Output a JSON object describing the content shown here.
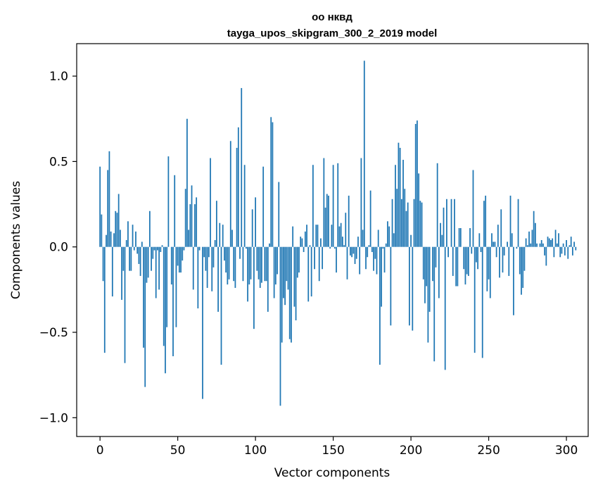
{
  "chart_data": {
    "type": "bar",
    "title_line1": "оо нквд",
    "title_line2": "tayga_upos_skipgram_300_2_2019 model",
    "xlabel": "Vector components",
    "ylabel": "Components values",
    "xlim": [
      -15,
      314
    ],
    "ylim": [
      -1.11,
      1.19
    ],
    "grid": false,
    "legend": "none",
    "bar_color": "#1f77b4",
    "x_ticks": [
      0,
      50,
      100,
      150,
      200,
      250,
      300
    ],
    "x_tick_labels": [
      "0",
      "50",
      "100",
      "150",
      "200",
      "250",
      "300"
    ],
    "y_ticks": [
      -1.0,
      -0.5,
      0.0,
      0.5,
      1.0
    ],
    "y_tick_labels": [
      "−1.0",
      "−0.5",
      "0.0",
      "0.5",
      "1.0"
    ],
    "values": [
      0.47,
      0.19,
      -0.2,
      -0.62,
      0.07,
      0.45,
      0.56,
      0.09,
      -0.29,
      0.08,
      0.21,
      0.2,
      0.31,
      0.1,
      -0.31,
      -0.14,
      -0.68,
      0.04,
      0.15,
      -0.14,
      -0.14,
      0.13,
      -0.02,
      0.09,
      -0.04,
      -0.1,
      -0.17,
      0.03,
      -0.59,
      -0.82,
      -0.21,
      -0.18,
      0.21,
      -0.14,
      -0.07,
      -0.02,
      -0.3,
      -0.02,
      -0.25,
      -0.03,
      0.01,
      -0.58,
      -0.74,
      -0.47,
      0.53,
      0.0,
      -0.22,
      -0.64,
      0.42,
      -0.47,
      -0.11,
      -0.15,
      -0.15,
      -0.08,
      -0.02,
      0.34,
      0.75,
      0.1,
      0.25,
      0.36,
      -0.25,
      0.25,
      0.29,
      -0.36,
      -0.02,
      0.0,
      -0.89,
      -0.06,
      -0.14,
      -0.24,
      -0.06,
      0.52,
      -0.26,
      -0.12,
      0.04,
      0.27,
      -0.38,
      0.14,
      -0.69,
      0.13,
      -0.08,
      -0.15,
      -0.22,
      -0.19,
      0.62,
      0.1,
      -0.2,
      -0.24,
      0.58,
      0.7,
      -0.07,
      0.93,
      -0.2,
      0.48,
      -0.01,
      -0.32,
      -0.22,
      -0.19,
      0.22,
      -0.48,
      0.29,
      -0.14,
      -0.19,
      -0.24,
      -0.21,
      0.47,
      -0.2,
      -0.2,
      -0.38,
      0.02,
      0.76,
      0.73,
      -0.3,
      -0.22,
      -0.16,
      0.38,
      -0.93,
      -0.56,
      -0.3,
      -0.34,
      -0.2,
      -0.25,
      -0.54,
      -0.56,
      0.12,
      -0.35,
      -0.43,
      -0.18,
      -0.15,
      0.06,
      0.05,
      -0.03,
      0.09,
      0.13,
      -0.32,
      0.01,
      -0.29,
      0.48,
      -0.13,
      0.13,
      0.13,
      -0.2,
      0.05,
      -0.13,
      0.52,
      0.23,
      0.31,
      0.3,
      -0.01,
      0.13,
      0.48,
      -0.01,
      -0.15,
      0.49,
      0.12,
      0.14,
      0.06,
      0.01,
      0.2,
      -0.19,
      0.3,
      -0.05,
      -0.06,
      -0.04,
      -0.1,
      -0.07,
      0.06,
      -0.16,
      0.52,
      0.1,
      1.09,
      -0.13,
      -0.06,
      0.01,
      0.33,
      -0.03,
      -0.14,
      -0.07,
      -0.16,
      0.1,
      -0.69,
      -0.35,
      -0.01,
      -0.15,
      0.02,
      0.15,
      0.12,
      -0.46,
      0.28,
      0.08,
      0.48,
      0.34,
      0.61,
      0.58,
      0.28,
      0.51,
      0.34,
      0.21,
      0.26,
      -0.46,
      0.07,
      -0.49,
      0.28,
      0.72,
      0.74,
      0.43,
      0.27,
      0.26,
      -0.19,
      -0.33,
      -0.23,
      -0.56,
      -0.38,
      0.0,
      -0.2,
      -0.67,
      -0.12,
      0.49,
      -0.3,
      0.14,
      0.07,
      0.23,
      -0.72,
      0.28,
      -0.06,
      0.0,
      0.28,
      -0.17,
      0.28,
      -0.23,
      -0.23,
      0.11,
      0.11,
      0.0,
      -0.13,
      -0.22,
      -0.16,
      -0.17,
      0.11,
      -0.04,
      0.45,
      -0.62,
      -0.09,
      -0.13,
      0.08,
      -0.03,
      -0.65,
      0.27,
      0.3,
      -0.26,
      -0.19,
      -0.3,
      0.08,
      0.03,
      0.03,
      -0.06,
      0.13,
      -0.18,
      0.22,
      -0.15,
      -0.05,
      0.0,
      0.03,
      -0.17,
      0.3,
      0.08,
      -0.4,
      0.0,
      -0.01,
      0.28,
      -0.16,
      -0.28,
      -0.24,
      -0.14,
      0.05,
      0.01,
      0.09,
      0.02,
      0.1,
      0.21,
      0.14,
      0.02,
      0.0,
      0.02,
      0.04,
      0.02,
      -0.05,
      -0.11,
      0.06,
      0.05,
      0.04,
      0.05,
      -0.06,
      0.1,
      0.02,
      0.08,
      -0.06,
      -0.04,
      0.02,
      -0.05,
      0.04,
      -0.07,
      0.01,
      0.06,
      -0.05,
      0.03,
      -0.02
    ]
  }
}
